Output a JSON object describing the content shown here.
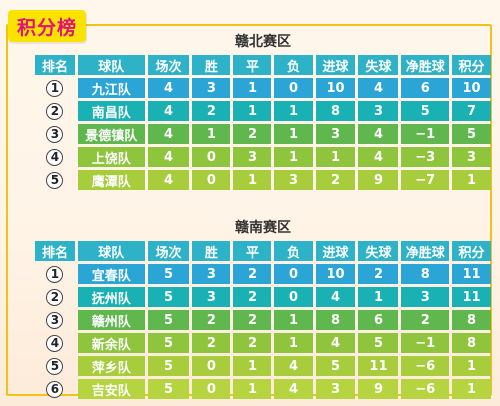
{
  "page_title": "积分榜",
  "headers": [
    "排名",
    "球队",
    "场次",
    "胜",
    "平",
    "负",
    "进球",
    "失球",
    "净胜球",
    "积分"
  ],
  "north": {
    "title": "赣北赛区",
    "rows": [
      {
        "rank": "1",
        "team": "九江队",
        "played": "4",
        "win": "3",
        "draw": "1",
        "loss": "0",
        "gf": "10",
        "ga": "4",
        "gd": "6",
        "pts": "10"
      },
      {
        "rank": "2",
        "team": "南昌队",
        "played": "4",
        "win": "2",
        "draw": "1",
        "loss": "1",
        "gf": "8",
        "ga": "3",
        "gd": "5",
        "pts": "7"
      },
      {
        "rank": "3",
        "team": "景德镇队",
        "played": "4",
        "win": "1",
        "draw": "2",
        "loss": "1",
        "gf": "3",
        "ga": "4",
        "gd": "−1",
        "pts": "5"
      },
      {
        "rank": "4",
        "team": "上饶队",
        "played": "4",
        "win": "0",
        "draw": "3",
        "loss": "1",
        "gf": "1",
        "ga": "4",
        "gd": "−3",
        "pts": "3"
      },
      {
        "rank": "5",
        "team": "鹰潭队",
        "played": "4",
        "win": "0",
        "draw": "1",
        "loss": "3",
        "gf": "2",
        "ga": "9",
        "gd": "−7",
        "pts": "1"
      }
    ]
  },
  "south": {
    "title": "赣南赛区",
    "rows": [
      {
        "rank": "1",
        "team": "宜春队",
        "played": "5",
        "win": "3",
        "draw": "2",
        "loss": "0",
        "gf": "10",
        "ga": "2",
        "gd": "8",
        "pts": "11"
      },
      {
        "rank": "2",
        "team": "抚州队",
        "played": "5",
        "win": "3",
        "draw": "2",
        "loss": "0",
        "gf": "4",
        "ga": "1",
        "gd": "3",
        "pts": "11"
      },
      {
        "rank": "3",
        "team": "赣州队",
        "played": "5",
        "win": "2",
        "draw": "2",
        "loss": "1",
        "gf": "8",
        "ga": "6",
        "gd": "2",
        "pts": "8"
      },
      {
        "rank": "4",
        "team": "新余队",
        "played": "5",
        "win": "2",
        "draw": "2",
        "loss": "1",
        "gf": "4",
        "ga": "5",
        "gd": "−1",
        "pts": "8"
      },
      {
        "rank": "5",
        "team": "萍乡队",
        "played": "5",
        "win": "0",
        "draw": "1",
        "loss": "4",
        "gf": "5",
        "ga": "11",
        "gd": "−6",
        "pts": "1"
      },
      {
        "rank": "6",
        "team": "吉安队",
        "played": "5",
        "win": "0",
        "draw": "1",
        "loss": "4",
        "gf": "3",
        "ga": "9",
        "gd": "−6",
        "pts": "1"
      }
    ]
  }
}
